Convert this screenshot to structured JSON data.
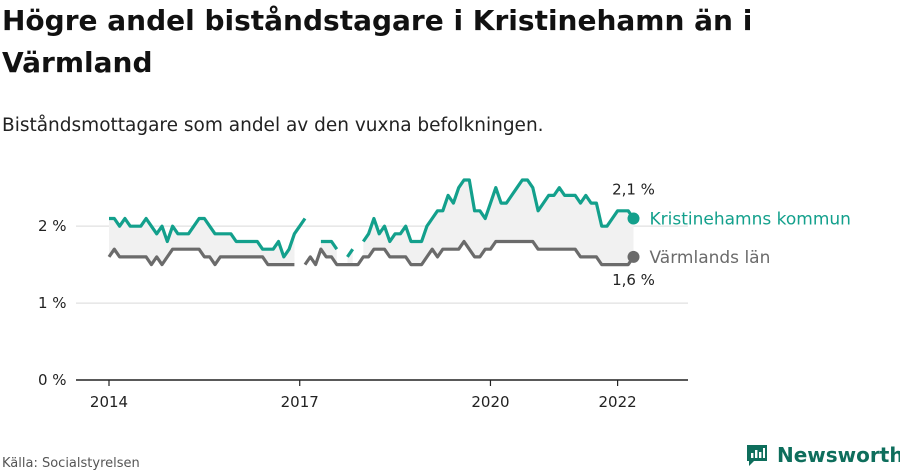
{
  "title": "Högre andel biståndstagare i Kristinehamn än i Värmland",
  "subtitle": "Biståndsmottagare som andel av den vuxna befolkningen.",
  "source": "Källa: Socialstyrelsen",
  "brand": "Newsworthy",
  "colors": {
    "kommun": "#13a08c",
    "lan": "#6b6b6b",
    "grid": "#d9d9d9",
    "axis": "#222222",
    "brand": "#0e6e5c"
  },
  "chart_data": {
    "type": "line",
    "x_start": "2014-01",
    "x_step": "month",
    "xlim": [
      "2014-01",
      "2022-09"
    ],
    "ylim": [
      0,
      2.6
    ],
    "x_ticks": [
      {
        "label": "2014",
        "date": "2014-01"
      },
      {
        "label": "2017",
        "date": "2017-01"
      },
      {
        "label": "2020",
        "date": "2020-01"
      },
      {
        "label": "2022",
        "date": "2022-01"
      }
    ],
    "y_ticks": [
      {
        "label": "0 %",
        "value": 0
      },
      {
        "label": "1 %",
        "value": 1
      },
      {
        "label": "2 %",
        "value": 2
      }
    ],
    "grid": true,
    "series": [
      {
        "name": "Kristinehamns kommun",
        "end_label": "2,1 %",
        "values": [
          2.1,
          2.1,
          2.0,
          2.1,
          2.0,
          2.0,
          2.0,
          2.1,
          2.0,
          1.9,
          2.0,
          1.8,
          2.0,
          1.9,
          1.9,
          1.9,
          2.0,
          2.1,
          2.1,
          2.0,
          1.9,
          1.9,
          1.9,
          1.9,
          1.8,
          1.8,
          1.8,
          1.8,
          1.8,
          1.7,
          1.7,
          1.7,
          1.8,
          1.6,
          1.7,
          1.9,
          2.0,
          2.1,
          null,
          null,
          1.8,
          1.8,
          1.8,
          1.7,
          null,
          1.6,
          1.7,
          null,
          1.8,
          1.9,
          2.1,
          1.9,
          2.0,
          1.8,
          1.9,
          1.9,
          2.0,
          1.8,
          1.8,
          1.8,
          2.0,
          2.1,
          2.2,
          2.2,
          2.4,
          2.3,
          2.5,
          2.6,
          2.6,
          2.2,
          2.2,
          2.1,
          2.3,
          2.5,
          2.3,
          2.3,
          2.4,
          2.5,
          2.6,
          2.6,
          2.5,
          2.2,
          2.3,
          2.4,
          2.4,
          2.5,
          2.4,
          2.4,
          2.4,
          2.3,
          2.4,
          2.3,
          2.3,
          2.0,
          2.0,
          2.1,
          2.2,
          2.2,
          2.2,
          2.1
        ]
      },
      {
        "name": "Värmlands län",
        "end_label": "1,6 %",
        "values": [
          1.6,
          1.7,
          1.6,
          1.6,
          1.6,
          1.6,
          1.6,
          1.6,
          1.5,
          1.6,
          1.5,
          1.6,
          1.7,
          1.7,
          1.7,
          1.7,
          1.7,
          1.7,
          1.6,
          1.6,
          1.5,
          1.6,
          1.6,
          1.6,
          1.6,
          1.6,
          1.6,
          1.6,
          1.6,
          1.6,
          1.5,
          1.5,
          1.5,
          1.5,
          1.5,
          1.5,
          null,
          1.5,
          1.6,
          1.5,
          1.7,
          1.6,
          1.6,
          1.5,
          1.5,
          1.5,
          1.5,
          1.5,
          1.6,
          1.6,
          1.7,
          1.7,
          1.7,
          1.6,
          1.6,
          1.6,
          1.6,
          1.5,
          1.5,
          1.5,
          1.6,
          1.7,
          1.6,
          1.7,
          1.7,
          1.7,
          1.7,
          1.8,
          1.7,
          1.6,
          1.6,
          1.7,
          1.7,
          1.8,
          1.8,
          1.8,
          1.8,
          1.8,
          1.8,
          1.8,
          1.8,
          1.7,
          1.7,
          1.7,
          1.7,
          1.7,
          1.7,
          1.7,
          1.7,
          1.6,
          1.6,
          1.6,
          1.6,
          1.5,
          1.5,
          1.5,
          1.5,
          1.5,
          1.5,
          1.6
        ]
      }
    ]
  }
}
